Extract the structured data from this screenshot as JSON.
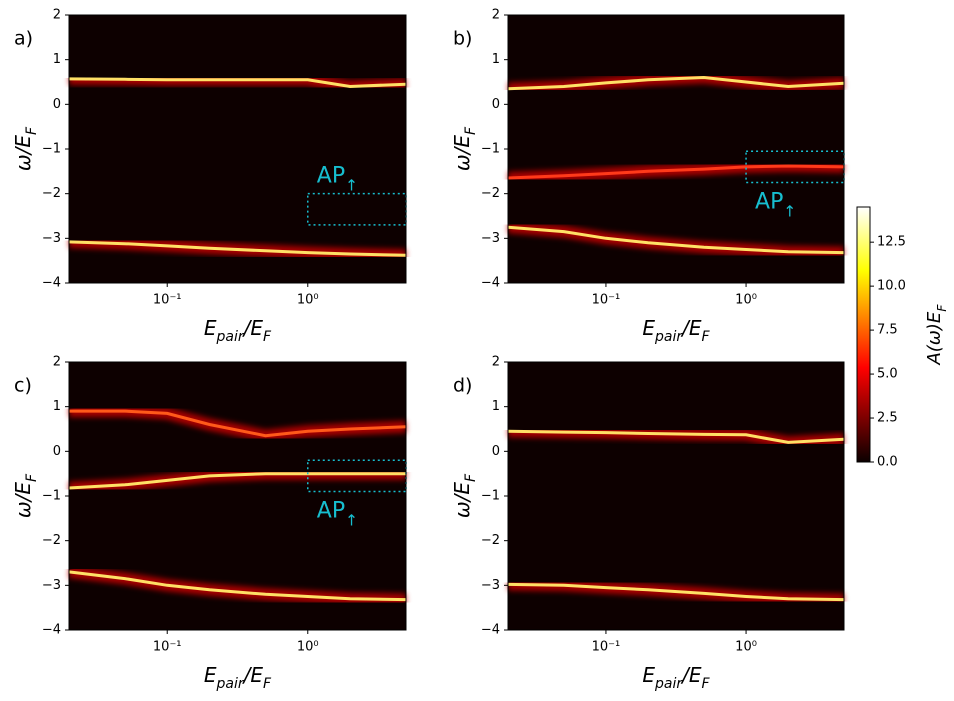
{
  "chart_data": [
    {
      "type": "line",
      "panel_label": "a)",
      "xscale": "log",
      "x": [
        0.02,
        0.05,
        0.1,
        0.2,
        0.5,
        1,
        2,
        5
      ],
      "series": [
        {
          "color": "#ffe066",
          "values": [
            0.57,
            0.56,
            0.55,
            0.55,
            0.55,
            0.55,
            0.4,
            0.45
          ]
        },
        {
          "color": "#ffe066",
          "values": [
            -3.08,
            -3.12,
            -3.17,
            -3.22,
            -3.28,
            -3.32,
            -3.35,
            -3.38
          ]
        }
      ],
      "xlim": [
        0.02,
        5
      ],
      "ylim": [
        -4,
        2
      ],
      "xticks": [
        {
          "value": 0.1,
          "label": "10⁻¹"
        },
        {
          "value": 1,
          "label": "10⁰"
        }
      ],
      "yticks": [
        {
          "value": -4,
          "label": "−4"
        },
        {
          "value": -3,
          "label": "−3"
        },
        {
          "value": -2,
          "label": "−2"
        },
        {
          "value": -1,
          "label": "−1"
        },
        0,
        1,
        2
      ],
      "annotations": [
        {
          "label": "AP",
          "subscript": "↑",
          "xrange": [
            1,
            5
          ],
          "yrange": [
            -2.7,
            -2
          ],
          "label_side": "above",
          "color": "#17becf"
        }
      ]
    },
    {
      "type": "line",
      "panel_label": "b)",
      "xscale": "log",
      "x": [
        0.02,
        0.05,
        0.1,
        0.2,
        0.5,
        1,
        2,
        5
      ],
      "series": [
        {
          "color": "#ffe066",
          "values": [
            0.35,
            0.4,
            0.48,
            0.55,
            0.6,
            0.5,
            0.4,
            0.47
          ]
        },
        {
          "color": "#ff3a1a",
          "values": [
            -1.65,
            -1.6,
            -1.55,
            -1.5,
            -1.45,
            -1.4,
            -1.38,
            -1.4
          ]
        },
        {
          "color": "#ffe066",
          "values": [
            -2.75,
            -2.85,
            -3.0,
            -3.1,
            -3.2,
            -3.25,
            -3.3,
            -3.32
          ]
        }
      ],
      "xlim": [
        0.02,
        5
      ],
      "ylim": [
        -4,
        2
      ],
      "xticks": [
        {
          "value": 0.1,
          "label": "10⁻¹"
        },
        {
          "value": 1,
          "label": "10⁰"
        }
      ],
      "yticks": [
        {
          "value": -4,
          "label": "−4"
        },
        {
          "value": -3,
          "label": "−3"
        },
        {
          "value": -2,
          "label": "−2"
        },
        {
          "value": -1,
          "label": "−1"
        },
        0,
        1,
        2
      ],
      "annotations": [
        {
          "label": "AP",
          "subscript": "↑",
          "xrange": [
            1,
            5
          ],
          "yrange": [
            -1.75,
            -1.05
          ],
          "label_side": "below",
          "color": "#17becf"
        }
      ]
    },
    {
      "type": "line",
      "panel_label": "c)",
      "xscale": "log",
      "x": [
        0.02,
        0.05,
        0.1,
        0.2,
        0.5,
        1,
        2,
        5
      ],
      "series": [
        {
          "color": "#ff5a1a",
          "values": [
            0.9,
            0.9,
            0.85,
            0.6,
            0.35,
            0.45,
            0.5,
            0.55
          ]
        },
        {
          "color": "#ffe066",
          "values": [
            -0.82,
            -0.75,
            -0.65,
            -0.55,
            -0.5,
            -0.5,
            -0.5,
            -0.5
          ]
        },
        {
          "color": "#ffe066",
          "values": [
            -2.7,
            -2.85,
            -3.0,
            -3.1,
            -3.2,
            -3.25,
            -3.3,
            -3.32
          ]
        }
      ],
      "xlim": [
        0.02,
        5
      ],
      "ylim": [
        -4,
        2
      ],
      "xticks": [
        {
          "value": 0.1,
          "label": "10⁻¹"
        },
        {
          "value": 1,
          "label": "10⁰"
        }
      ],
      "yticks": [
        {
          "value": -4,
          "label": "−4"
        },
        {
          "value": -3,
          "label": "−3"
        },
        {
          "value": -2,
          "label": "−2"
        },
        {
          "value": -1,
          "label": "−1"
        },
        0,
        1,
        2
      ],
      "annotations": [
        {
          "label": "AP",
          "subscript": "↑",
          "xrange": [
            1,
            5
          ],
          "yrange": [
            -0.9,
            -0.2
          ],
          "label_side": "below",
          "color": "#17becf"
        }
      ]
    },
    {
      "type": "line",
      "panel_label": "d)",
      "xscale": "log",
      "x": [
        0.02,
        0.05,
        0.1,
        0.2,
        0.5,
        1,
        2,
        5
      ],
      "series": [
        {
          "color": "#ffe066",
          "values": [
            0.45,
            0.43,
            0.42,
            0.4,
            0.38,
            0.37,
            0.2,
            0.27
          ]
        },
        {
          "color": "#ffe066",
          "values": [
            -2.98,
            -3.0,
            -3.05,
            -3.1,
            -3.18,
            -3.25,
            -3.3,
            -3.32
          ]
        }
      ],
      "xlim": [
        0.02,
        5
      ],
      "ylim": [
        -4,
        2
      ],
      "xticks": [
        {
          "value": 0.1,
          "label": "10⁻¹"
        },
        {
          "value": 1,
          "label": "10⁰"
        }
      ],
      "yticks": [
        {
          "value": -4,
          "label": "−4"
        },
        {
          "value": -3,
          "label": "−3"
        },
        {
          "value": -2,
          "label": "−2"
        },
        {
          "value": -1,
          "label": "−1"
        },
        0,
        1,
        2
      ],
      "annotations": []
    }
  ],
  "xlabel_parts": [
    "E",
    "pair",
    "/E",
    "F"
  ],
  "ylabel_parts": [
    "ω/E",
    "F"
  ],
  "colorbar": {
    "label_parts": [
      "A(ω)E",
      "F"
    ],
    "clim": [
      0,
      14.5
    ],
    "ticks": [
      {
        "value": 0,
        "label": "0.0"
      },
      {
        "value": 2.5,
        "label": "2.5"
      },
      {
        "value": 5,
        "label": "5.0"
      },
      {
        "value": 7.5,
        "label": "7.5"
      },
      {
        "value": 10,
        "label": "10.0"
      },
      {
        "value": 12.5,
        "label": "12.5"
      }
    ]
  }
}
